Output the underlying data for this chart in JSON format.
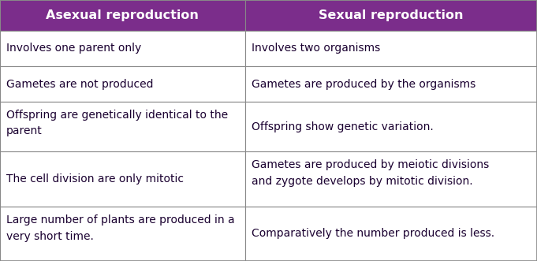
{
  "header_bg": "#7b2d8b",
  "header_text_color": "#ffffff",
  "cell_bg": "#ffffff",
  "border_color": "#888888",
  "text_color": "#1a0030",
  "col1_header": "Asexual reproduction",
  "col2_header": "Sexual reproduction",
  "rows": [
    [
      "Involves one parent only",
      "Involves two organisms"
    ],
    [
      "Gametes are not produced",
      "Gametes are produced by the organisms"
    ],
    [
      "Offspring are genetically identical to the\nparent",
      "Offspring show genetic variation."
    ],
    [
      "The cell division are only mitotic",
      "Gametes are produced by meiotic divisions\nand zygote develops by mitotic division."
    ],
    [
      "Large number of plants are produced in a\nvery short time.",
      "Comparatively the number produced is less."
    ]
  ],
  "col_split": 0.456,
  "header_fontsize": 11.5,
  "cell_fontsize": 10.0,
  "fig_width": 6.81,
  "fig_height": 3.31,
  "dpi": 100
}
